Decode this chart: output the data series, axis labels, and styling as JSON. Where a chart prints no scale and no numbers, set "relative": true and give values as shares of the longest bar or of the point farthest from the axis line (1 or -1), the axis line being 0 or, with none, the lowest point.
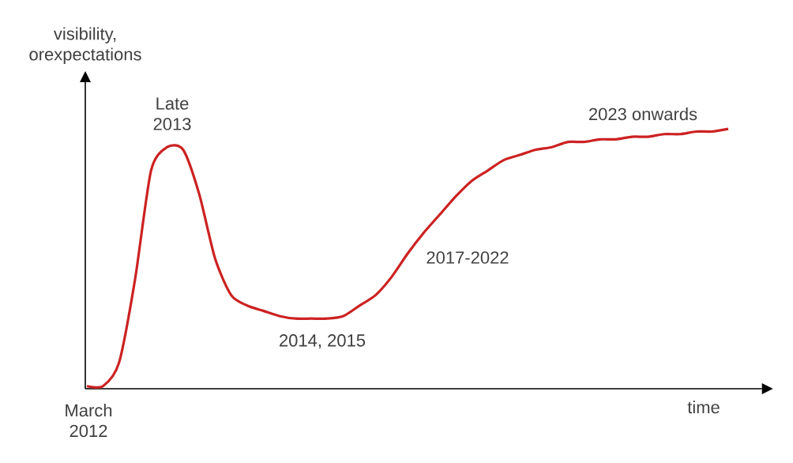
{
  "chart_data": {
    "type": "line",
    "relative": true,
    "xlabel": "time",
    "ylabel": "visibility, orexpectations",
    "categories": [
      null,
      null,
      null,
      null,
      null,
      null,
      null,
      null,
      null,
      null,
      null,
      null,
      null,
      null,
      null,
      null,
      null,
      null,
      null,
      null,
      null,
      null,
      null,
      null,
      null,
      null,
      null,
      null,
      null,
      null,
      null,
      null,
      null,
      null,
      null,
      null,
      null,
      null,
      null,
      null,
      null
    ],
    "color": "#cc2222",
    "values": [
      0.01,
      0.01,
      0.1,
      0.42,
      0.84,
      0.93,
      0.92,
      0.75,
      0.5,
      0.36,
      0.32,
      0.3,
      0.28,
      0.27,
      0.27,
      0.27,
      0.28,
      0.32,
      0.36,
      0.43,
      0.52,
      0.6,
      0.67,
      0.74,
      0.8,
      0.84,
      0.88,
      0.9,
      0.92,
      0.93,
      0.95,
      0.95,
      0.96,
      0.96,
      0.97,
      0.97,
      0.98,
      0.98,
      0.99,
      0.99,
      1.0
    ],
    "annotations": [
      "Late 2013",
      "2014, 2015",
      "2017-2022",
      "2023 onwards",
      "March 2012"
    ]
  }
}
